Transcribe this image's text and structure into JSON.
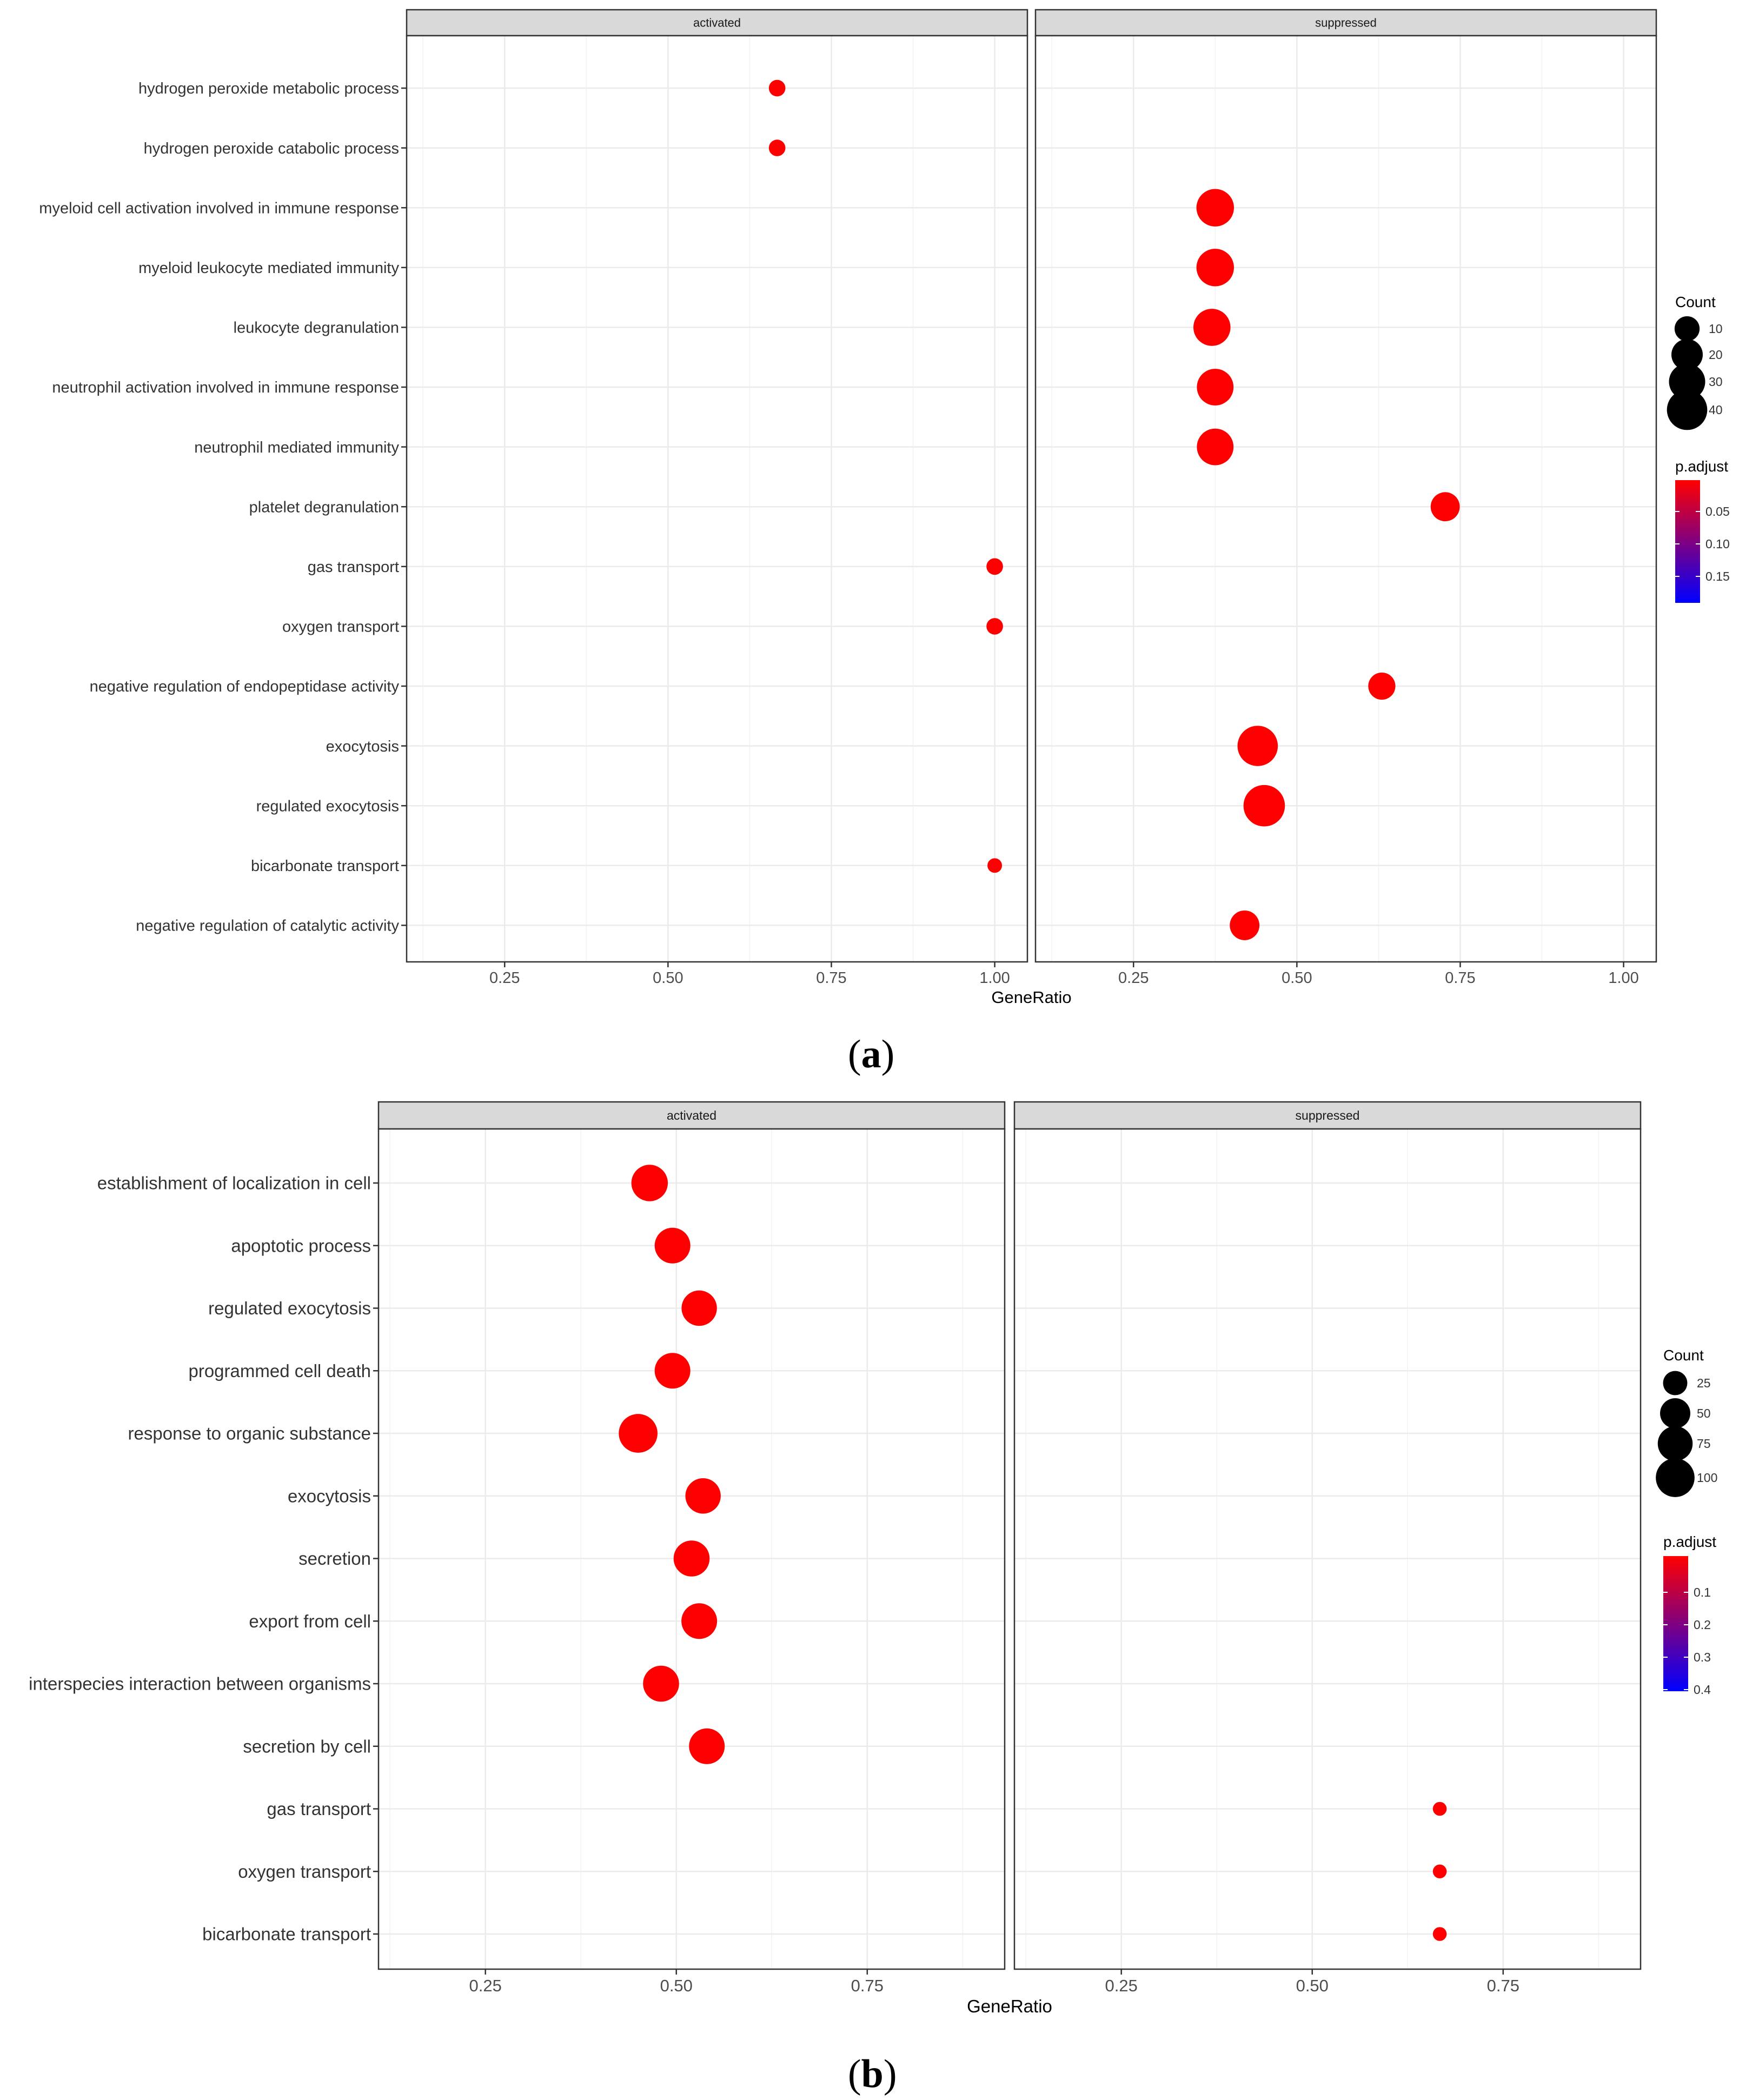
{
  "chart_data": [
    {
      "type": "scatter",
      "panel_label": "a",
      "xlabel": "GeneRatio",
      "xlim": [
        0.1,
        1.05
      ],
      "x_ticks": [
        0.25,
        0.5,
        0.75,
        1.0
      ],
      "x_tick_labels": [
        "0.25",
        "0.50",
        "0.75",
        "1.00"
      ],
      "facets": [
        "activated",
        "suppressed"
      ],
      "categories": [
        "hydrogen peroxide metabolic process",
        "hydrogen peroxide catabolic process",
        "myeloid cell activation involved in immune response",
        "myeloid leukocyte mediated immunity",
        "leukocyte degranulation",
        "neutrophil activation involved in immune response",
        "neutrophil mediated immunity",
        "platelet degranulation",
        "gas transport",
        "oxygen transport",
        "negative regulation of endopeptidase activity",
        "exocytosis",
        "regulated exocytosis",
        "bicarbonate transport",
        "negative regulation of catalytic activity"
      ],
      "points": [
        {
          "facet": "activated",
          "category": "hydrogen peroxide metabolic process",
          "x": 0.667,
          "count": 2,
          "p_adjust": 0.01
        },
        {
          "facet": "activated",
          "category": "hydrogen peroxide catabolic process",
          "x": 0.667,
          "count": 2,
          "p_adjust": 0.01
        },
        {
          "facet": "suppressed",
          "category": "myeloid cell activation involved in immune response",
          "x": 0.375,
          "count": 33,
          "p_adjust": 0.01
        },
        {
          "facet": "suppressed",
          "category": "myeloid leukocyte mediated immunity",
          "x": 0.375,
          "count": 33,
          "p_adjust": 0.01
        },
        {
          "facet": "suppressed",
          "category": "leukocyte degranulation",
          "x": 0.37,
          "count": 32,
          "p_adjust": 0.01
        },
        {
          "facet": "suppressed",
          "category": "neutrophil activation involved in immune response",
          "x": 0.375,
          "count": 31,
          "p_adjust": 0.01
        },
        {
          "facet": "suppressed",
          "category": "neutrophil mediated immunity",
          "x": 0.375,
          "count": 31,
          "p_adjust": 0.01
        },
        {
          "facet": "suppressed",
          "category": "platelet degranulation",
          "x": 0.727,
          "count": 16,
          "p_adjust": 0.01
        },
        {
          "facet": "activated",
          "category": "gas transport",
          "x": 1.0,
          "count": 2,
          "p_adjust": 0.01
        },
        {
          "facet": "activated",
          "category": "oxygen transport",
          "x": 1.0,
          "count": 2,
          "p_adjust": 0.01
        },
        {
          "facet": "suppressed",
          "category": "negative regulation of endopeptidase activity",
          "x": 0.63,
          "count": 13,
          "p_adjust": 0.01
        },
        {
          "facet": "suppressed",
          "category": "exocytosis",
          "x": 0.44,
          "count": 40,
          "p_adjust": 0.01
        },
        {
          "facet": "suppressed",
          "category": "regulated exocytosis",
          "x": 0.45,
          "count": 43,
          "p_adjust": 0.01
        },
        {
          "facet": "activated",
          "category": "bicarbonate transport",
          "x": 1.0,
          "count": 1,
          "p_adjust": 0.01
        },
        {
          "facet": "suppressed",
          "category": "negative regulation of catalytic activity",
          "x": 0.42,
          "count": 17,
          "p_adjust": 0.01
        }
      ],
      "legend_count": {
        "title": "Count",
        "values": [
          10,
          20,
          30,
          40
        ],
        "labels": [
          "10",
          "20",
          "30",
          "40"
        ]
      },
      "legend_padjust": {
        "title": "p.adjust",
        "ticks": [
          0.05,
          0.1,
          0.15
        ],
        "tick_labels": [
          "0.05",
          "0.10",
          "0.15"
        ],
        "range": [
          0.01,
          0.18
        ],
        "low_color": "#ff0000",
        "high_color": "#0000ff"
      }
    },
    {
      "type": "scatter",
      "panel_label": "b",
      "xlabel": "GeneRatio",
      "xlim": [
        0.11,
        0.93
      ],
      "x_ticks": [
        0.25,
        0.5,
        0.75
      ],
      "x_tick_labels": [
        "0.25",
        "0.50",
        "0.75"
      ],
      "facets": [
        "activated",
        "suppressed"
      ],
      "categories": [
        "establishment of localization in cell",
        "apoptotic process",
        "regulated exocytosis",
        "programmed cell death",
        "response to organic substance",
        "exocytosis",
        "secretion",
        "export from cell",
        "interspecies interaction between organisms",
        "secretion by cell",
        "gas transport",
        "oxygen transport",
        "bicarbonate transport"
      ],
      "points": [
        {
          "facet": "activated",
          "category": "establishment of localization in cell",
          "x": 0.465,
          "count": 85,
          "p_adjust": 0.02
        },
        {
          "facet": "activated",
          "category": "apoptotic process",
          "x": 0.495,
          "count": 80,
          "p_adjust": 0.02
        },
        {
          "facet": "activated",
          "category": "regulated exocytosis",
          "x": 0.53,
          "count": 78,
          "p_adjust": 0.02
        },
        {
          "facet": "activated",
          "category": "programmed cell death",
          "x": 0.495,
          "count": 80,
          "p_adjust": 0.02
        },
        {
          "facet": "activated",
          "category": "response to organic substance",
          "x": 0.45,
          "count": 100,
          "p_adjust": 0.02
        },
        {
          "facet": "activated",
          "category": "exocytosis",
          "x": 0.535,
          "count": 78,
          "p_adjust": 0.02
        },
        {
          "facet": "activated",
          "category": "secretion",
          "x": 0.52,
          "count": 82,
          "p_adjust": 0.02
        },
        {
          "facet": "activated",
          "category": "export from cell",
          "x": 0.53,
          "count": 80,
          "p_adjust": 0.02
        },
        {
          "facet": "activated",
          "category": "interspecies interaction between organisms",
          "x": 0.48,
          "count": 82,
          "p_adjust": 0.02
        },
        {
          "facet": "activated",
          "category": "secretion by cell",
          "x": 0.54,
          "count": 80,
          "p_adjust": 0.02
        },
        {
          "facet": "suppressed",
          "category": "gas transport",
          "x": 0.667,
          "count": 2,
          "p_adjust": 0.02
        },
        {
          "facet": "suppressed",
          "category": "oxygen transport",
          "x": 0.667,
          "count": 2,
          "p_adjust": 0.02
        },
        {
          "facet": "suppressed",
          "category": "bicarbonate transport",
          "x": 0.667,
          "count": 2,
          "p_adjust": 0.02
        }
      ],
      "legend_count": {
        "title": "Count",
        "values": [
          25,
          50,
          75,
          100
        ],
        "labels": [
          "25",
          "50",
          "75",
          "100"
        ]
      },
      "legend_padjust": {
        "title": "p.adjust",
        "ticks": [
          0.1,
          0.2,
          0.3,
          0.4
        ],
        "tick_labels": [
          "0.1",
          "0.2",
          "0.3",
          "0.4"
        ],
        "range": [
          0.02,
          0.41
        ],
        "low_color": "#ff0000",
        "high_color": "#0000ff"
      }
    }
  ],
  "colors": {
    "point": "#ff0000",
    "strip_fill": "#d9d9d9",
    "grid": "#ebebeb",
    "axis_text": "#333333"
  }
}
